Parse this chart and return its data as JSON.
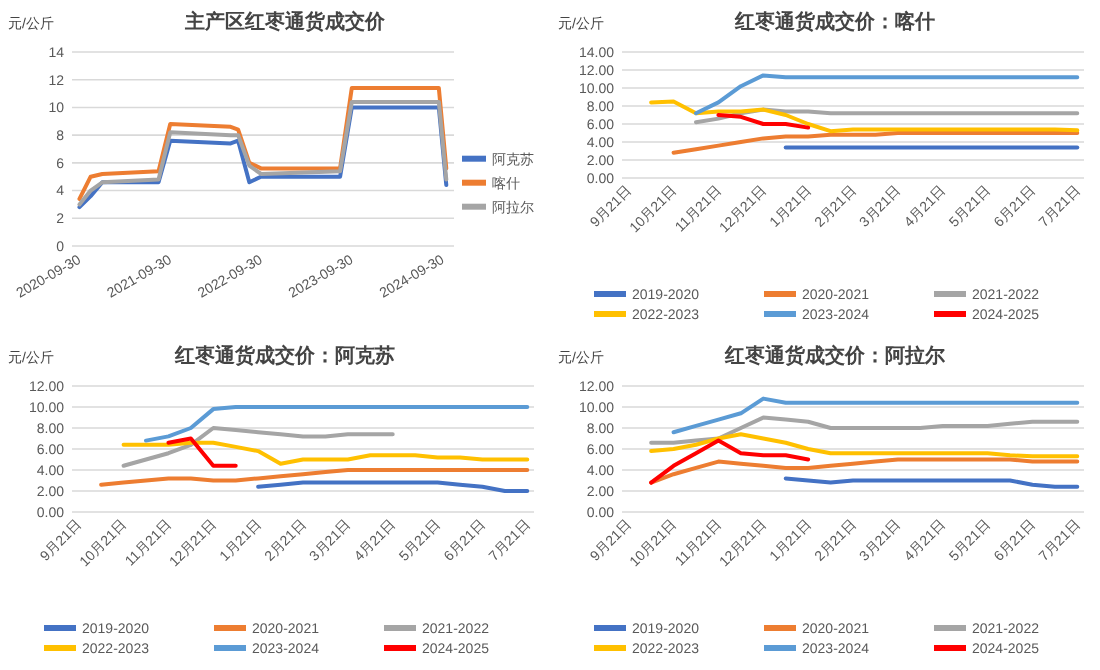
{
  "chart_data": [
    {
      "type": "line",
      "title": "主产区红枣通货成交价",
      "ylabel": "元/公斤",
      "x": [
        "2020-10-01",
        "2020-11-15",
        "2021-01-01",
        "2021-08-15",
        "2021-10-01",
        "2022-06-01",
        "2022-07-01",
        "2022-08-15",
        "2022-10-01",
        "2023-08-15",
        "2023-10-01",
        "2024-09-15",
        "2024-10-15"
      ],
      "xlim": [
        "2020-09-01",
        "2024-11-15"
      ],
      "xticks": [
        {
          "value": "2020-09-30",
          "label": "2020-09-30"
        },
        {
          "value": "2021-09-30",
          "label": "2021-09-30"
        },
        {
          "value": "2022-09-30",
          "label": "2022-09-30"
        },
        {
          "value": "2023-09-30",
          "label": "2023-09-30"
        },
        {
          "value": "2024-09-30",
          "label": "2024-09-30"
        }
      ],
      "ylim": [
        0,
        14
      ],
      "yticks": [
        0,
        2,
        4,
        6,
        8,
        10,
        12,
        14
      ],
      "grid": "y",
      "legend": "right",
      "series": [
        {
          "name": "阿克苏",
          "color": "#4472c4",
          "values": [
            2.8,
            3.6,
            4.6,
            4.6,
            7.6,
            7.4,
            7.6,
            4.6,
            5.0,
            5.0,
            10.0,
            10.0,
            4.4
          ]
        },
        {
          "name": "喀什",
          "color": "#ed7d31",
          "values": [
            3.4,
            5.0,
            5.2,
            5.4,
            8.8,
            8.6,
            8.4,
            6.0,
            5.6,
            5.6,
            11.4,
            11.4,
            5.6
          ]
        },
        {
          "name": "阿拉尔",
          "color": "#a5a5a5",
          "values": [
            3.0,
            4.0,
            4.6,
            4.8,
            8.2,
            8.0,
            8.0,
            5.8,
            5.2,
            5.4,
            10.4,
            10.4,
            4.8
          ]
        }
      ]
    },
    {
      "type": "line",
      "title": "红枣通货成交价：喀什",
      "ylabel": "元/公斤",
      "categories": [
        "9月21日",
        null,
        "10月21日",
        null,
        "11月21日",
        null,
        "12月21日",
        null,
        "1月21日",
        null,
        "2月21日",
        null,
        "3月21日",
        null,
        "4月21日",
        null,
        "5月21日",
        null,
        "6月21日",
        null,
        "7月21日"
      ],
      "ylim": [
        0,
        14
      ],
      "yticks": [
        {
          "value": 0,
          "label": "0.00"
        },
        {
          "value": 2,
          "label": "2.00"
        },
        {
          "value": 4,
          "label": "4.00"
        },
        {
          "value": 6,
          "label": "6.00"
        },
        {
          "value": 8,
          "label": "8.00"
        },
        {
          "value": 10,
          "label": "10.00"
        },
        {
          "value": 12,
          "label": "12.00"
        },
        {
          "value": 14,
          "label": "14.00"
        }
      ],
      "grid": "y",
      "legend": "bottom",
      "series": [
        {
          "name": "2019-2020",
          "color": "#4472c4",
          "values": [
            null,
            null,
            null,
            null,
            null,
            null,
            null,
            3.4,
            3.4,
            3.4,
            3.4,
            3.4,
            3.4,
            3.4,
            3.4,
            3.4,
            3.4,
            3.4,
            3.4,
            3.4,
            3.4
          ]
        },
        {
          "name": "2020-2021",
          "color": "#ed7d31",
          "values": [
            null,
            null,
            2.8,
            3.2,
            3.6,
            4.0,
            4.4,
            4.6,
            4.6,
            4.8,
            4.8,
            4.8,
            5.0,
            5.0,
            5.0,
            5.0,
            5.0,
            5.0,
            5.0,
            5.0,
            5.0
          ]
        },
        {
          "name": "2021-2022",
          "color": "#a5a5a5",
          "values": [
            null,
            null,
            null,
            6.2,
            6.6,
            7.2,
            7.6,
            7.4,
            7.4,
            7.2,
            7.2,
            7.2,
            7.2,
            7.2,
            7.2,
            7.2,
            7.2,
            7.2,
            7.2,
            7.2,
            7.2
          ]
        },
        {
          "name": "2022-2023",
          "color": "#ffc000",
          "values": [
            null,
            8.4,
            8.5,
            7.2,
            7.4,
            7.4,
            7.6,
            7.0,
            6.0,
            5.2,
            5.4,
            5.4,
            5.4,
            5.4,
            5.4,
            5.4,
            5.4,
            5.4,
            5.4,
            5.4,
            5.3
          ]
        },
        {
          "name": "2023-2024",
          "color": "#5b9bd5",
          "values": [
            null,
            null,
            null,
            7.2,
            8.4,
            10.2,
            11.4,
            11.2,
            11.2,
            11.2,
            11.2,
            11.2,
            11.2,
            11.2,
            11.2,
            11.2,
            11.2,
            11.2,
            11.2,
            11.2,
            11.2
          ]
        },
        {
          "name": "2024-2025",
          "color": "#ff0000",
          "values": [
            null,
            null,
            null,
            null,
            7.0,
            6.8,
            6.0,
            6.0,
            5.6,
            null,
            null,
            null,
            null,
            null,
            null,
            null,
            null,
            null,
            null,
            null,
            null
          ]
        }
      ]
    },
    {
      "type": "line",
      "title": "红枣通货成交价：阿克苏",
      "ylabel": "元/公斤",
      "categories": [
        "9月21日",
        null,
        "10月21日",
        null,
        "11月21日",
        null,
        "12月21日",
        null,
        "1月21日",
        null,
        "2月21日",
        null,
        "3月21日",
        null,
        "4月21日",
        null,
        "5月21日",
        null,
        "6月21日",
        null,
        "7月21日"
      ],
      "ylim": [
        0,
        12
      ],
      "yticks": [
        {
          "value": 0,
          "label": "0.00"
        },
        {
          "value": 2,
          "label": "2.00"
        },
        {
          "value": 4,
          "label": "4.00"
        },
        {
          "value": 6,
          "label": "6.00"
        },
        {
          "value": 8,
          "label": "8.00"
        },
        {
          "value": 10,
          "label": "10.00"
        },
        {
          "value": 12,
          "label": "12.00"
        }
      ],
      "grid": "y",
      "legend": "bottom",
      "series": [
        {
          "name": "2019-2020",
          "color": "#4472c4",
          "values": [
            null,
            null,
            null,
            null,
            null,
            null,
            null,
            null,
            2.4,
            2.6,
            2.8,
            2.8,
            2.8,
            2.8,
            2.8,
            2.8,
            2.8,
            2.6,
            2.4,
            2.0,
            2.0
          ]
        },
        {
          "name": "2020-2021",
          "color": "#ed7d31",
          "values": [
            null,
            2.6,
            2.8,
            3.0,
            3.2,
            3.2,
            3.0,
            3.0,
            3.2,
            3.4,
            3.6,
            3.8,
            4.0,
            4.0,
            4.0,
            4.0,
            4.0,
            4.0,
            4.0,
            4.0,
            4.0
          ]
        },
        {
          "name": "2021-2022",
          "color": "#a5a5a5",
          "values": [
            null,
            null,
            4.4,
            5.0,
            5.6,
            6.4,
            8.0,
            7.8,
            7.6,
            7.4,
            7.2,
            7.2,
            7.4,
            7.4,
            7.4,
            null,
            null,
            null,
            null,
            null,
            null
          ]
        },
        {
          "name": "2022-2023",
          "color": "#ffc000",
          "values": [
            null,
            null,
            6.4,
            6.4,
            6.4,
            6.6,
            6.6,
            6.2,
            5.8,
            4.6,
            5.0,
            5.0,
            5.0,
            5.4,
            5.4,
            5.4,
            5.2,
            5.2,
            5.0,
            5.0,
            5.0
          ]
        },
        {
          "name": "2023-2024",
          "color": "#5b9bd5",
          "values": [
            null,
            null,
            null,
            6.8,
            7.2,
            8.0,
            9.8,
            10.0,
            10.0,
            10.0,
            10.0,
            10.0,
            10.0,
            10.0,
            10.0,
            10.0,
            10.0,
            10.0,
            10.0,
            10.0,
            10.0
          ]
        },
        {
          "name": "2024-2025",
          "color": "#ff0000",
          "values": [
            null,
            null,
            null,
            null,
            6.6,
            7.0,
            4.4,
            4.4,
            null,
            null,
            null,
            null,
            null,
            null,
            null,
            null,
            null,
            null,
            null,
            null,
            null
          ]
        }
      ]
    },
    {
      "type": "line",
      "title": "红枣通货成交价：阿拉尔",
      "ylabel": "元/公斤",
      "categories": [
        "9月21日",
        null,
        "10月21日",
        null,
        "11月21日",
        null,
        "12月21日",
        null,
        "1月21日",
        null,
        "2月21日",
        null,
        "3月21日",
        null,
        "4月21日",
        null,
        "5月21日",
        null,
        "6月21日",
        null,
        "7月21日"
      ],
      "ylim": [
        0,
        12
      ],
      "yticks": [
        {
          "value": 0,
          "label": "0.00"
        },
        {
          "value": 2,
          "label": "2.00"
        },
        {
          "value": 4,
          "label": "4.00"
        },
        {
          "value": 6,
          "label": "6.00"
        },
        {
          "value": 8,
          "label": "8.00"
        },
        {
          "value": 10,
          "label": "10.00"
        },
        {
          "value": 12,
          "label": "12.00"
        }
      ],
      "grid": "y",
      "legend": "bottom",
      "series": [
        {
          "name": "2019-2020",
          "color": "#4472c4",
          "values": [
            null,
            null,
            null,
            null,
            null,
            null,
            null,
            3.2,
            3.0,
            2.8,
            3.0,
            3.0,
            3.0,
            3.0,
            3.0,
            3.0,
            3.0,
            3.0,
            2.6,
            2.4,
            2.4
          ]
        },
        {
          "name": "2020-2021",
          "color": "#ed7d31",
          "values": [
            null,
            2.8,
            3.6,
            4.2,
            4.8,
            4.6,
            4.4,
            4.2,
            4.2,
            4.4,
            4.6,
            4.8,
            5.0,
            5.0,
            5.0,
            5.0,
            5.0,
            5.0,
            4.8,
            4.8,
            4.8
          ]
        },
        {
          "name": "2021-2022",
          "color": "#a5a5a5",
          "values": [
            null,
            6.6,
            6.6,
            6.8,
            7.0,
            8.0,
            9.0,
            8.8,
            8.6,
            8.0,
            8.0,
            8.0,
            8.0,
            8.0,
            8.2,
            8.2,
            8.2,
            8.4,
            8.6,
            8.6,
            8.6
          ]
        },
        {
          "name": "2022-2023",
          "color": "#ffc000",
          "values": [
            null,
            5.8,
            6.0,
            6.4,
            7.0,
            7.4,
            7.0,
            6.6,
            6.0,
            5.6,
            5.6,
            5.6,
            5.6,
            5.6,
            5.6,
            5.6,
            5.6,
            5.4,
            5.3,
            5.3,
            5.3
          ]
        },
        {
          "name": "2023-2024",
          "color": "#5b9bd5",
          "values": [
            null,
            null,
            7.6,
            8.2,
            8.8,
            9.4,
            10.8,
            10.4,
            10.4,
            10.4,
            10.4,
            10.4,
            10.4,
            10.4,
            10.4,
            10.4,
            10.4,
            10.4,
            10.4,
            10.4,
            10.4
          ]
        },
        {
          "name": "2024-2025",
          "color": "#ff0000",
          "values": [
            null,
            2.8,
            4.4,
            5.6,
            6.8,
            5.6,
            5.4,
            5.4,
            5.0,
            null,
            null,
            null,
            null,
            null,
            null,
            null,
            null,
            null,
            null,
            null,
            null
          ]
        }
      ]
    }
  ]
}
